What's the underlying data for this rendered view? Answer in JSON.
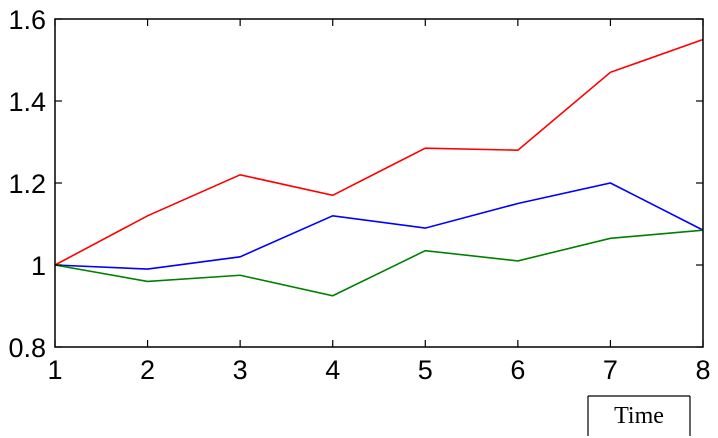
{
  "chart_data": {
    "type": "line",
    "x": [
      1,
      2,
      3,
      4,
      5,
      6,
      7,
      8
    ],
    "xlim": [
      1,
      8
    ],
    "ylim": [
      0.8,
      1.6
    ],
    "xticks": [
      "1",
      "2",
      "3",
      "4",
      "5",
      "6",
      "7",
      "8"
    ],
    "yticks": [
      {
        "value": 0.8,
        "label": "0.8"
      },
      {
        "value": 1.0,
        "label": "1"
      },
      {
        "value": 1.2,
        "label": "1.2"
      },
      {
        "value": 1.4,
        "label": "1.4"
      },
      {
        "value": 1.6,
        "label": "1.6"
      }
    ],
    "xlabel": "Time",
    "grid": false,
    "series": [
      {
        "color": "#ff0000",
        "values": [
          1.0,
          1.12,
          1.22,
          1.17,
          1.285,
          1.28,
          1.47,
          1.55
        ]
      },
      {
        "color": "#0000ff",
        "values": [
          1.0,
          0.99,
          1.02,
          1.12,
          1.09,
          1.15,
          1.2,
          1.085
        ]
      },
      {
        "color": "#008000",
        "values": [
          1.0,
          0.96,
          0.975,
          0.925,
          1.035,
          1.01,
          1.065,
          1.085
        ]
      }
    ]
  }
}
